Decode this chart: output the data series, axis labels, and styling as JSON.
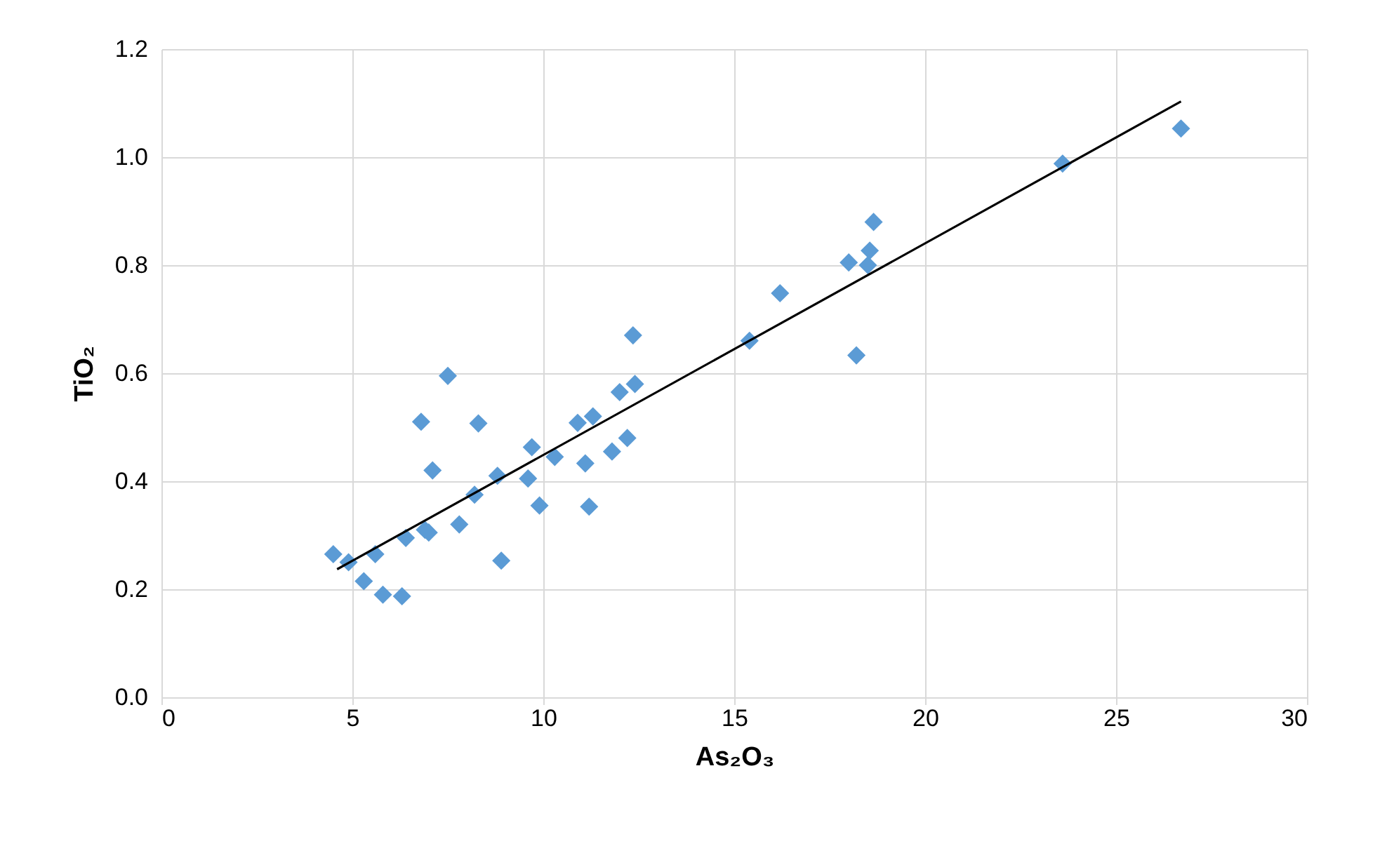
{
  "chart_data": {
    "type": "scatter",
    "xlabel": "As₂O₃",
    "ylabel": "TiO₂",
    "grid": true,
    "xlim": [
      0,
      30
    ],
    "xticks": [
      0,
      5,
      10,
      15,
      20,
      25,
      30
    ],
    "ylim": [
      0,
      1.2
    ],
    "yticks": [
      {
        "value": 0,
        "label": "0.0"
      },
      {
        "value": 0.2,
        "label": "0.2"
      },
      {
        "value": 0.4,
        "label": "0.4"
      },
      {
        "value": 0.6,
        "label": "0.6"
      },
      {
        "value": 0.8,
        "label": "0.8"
      },
      {
        "value": 1.0,
        "label": "1.0"
      },
      {
        "value": 1.2,
        "label": "1.2"
      }
    ],
    "series": [
      {
        "marker": "diamond",
        "color": "#5b9bd5",
        "x": [
          4.5,
          4.9,
          5.3,
          5.6,
          5.8,
          6.3,
          6.4,
          6.8,
          6.9,
          7.0,
          7.1,
          7.5,
          7.8,
          8.2,
          8.3,
          8.8,
          8.9,
          9.6,
          9.7,
          9.9,
          10.3,
          10.9,
          11.1,
          11.2,
          11.3,
          11.8,
          12.0,
          12.2,
          12.4,
          12.35,
          15.4,
          16.2,
          18.0,
          18.2,
          18.5,
          18.55,
          18.65,
          23.6,
          26.7
        ],
        "values": [
          0.265,
          0.25,
          0.215,
          0.265,
          0.19,
          0.187,
          0.295,
          0.51,
          0.31,
          0.305,
          0.42,
          0.595,
          0.32,
          0.375,
          0.507,
          0.41,
          0.253,
          0.405,
          0.463,
          0.355,
          0.445,
          0.508,
          0.433,
          0.353,
          0.52,
          0.455,
          0.565,
          0.48,
          0.58,
          0.67,
          0.66,
          0.748,
          0.805,
          0.633,
          0.8,
          0.827,
          0.88,
          0.988,
          1.053
        ]
      },
      {
        "type": "line",
        "color": "#000000",
        "x": [
          4.6,
          26.7
        ],
        "values": [
          0.237,
          1.103
        ]
      }
    ]
  }
}
